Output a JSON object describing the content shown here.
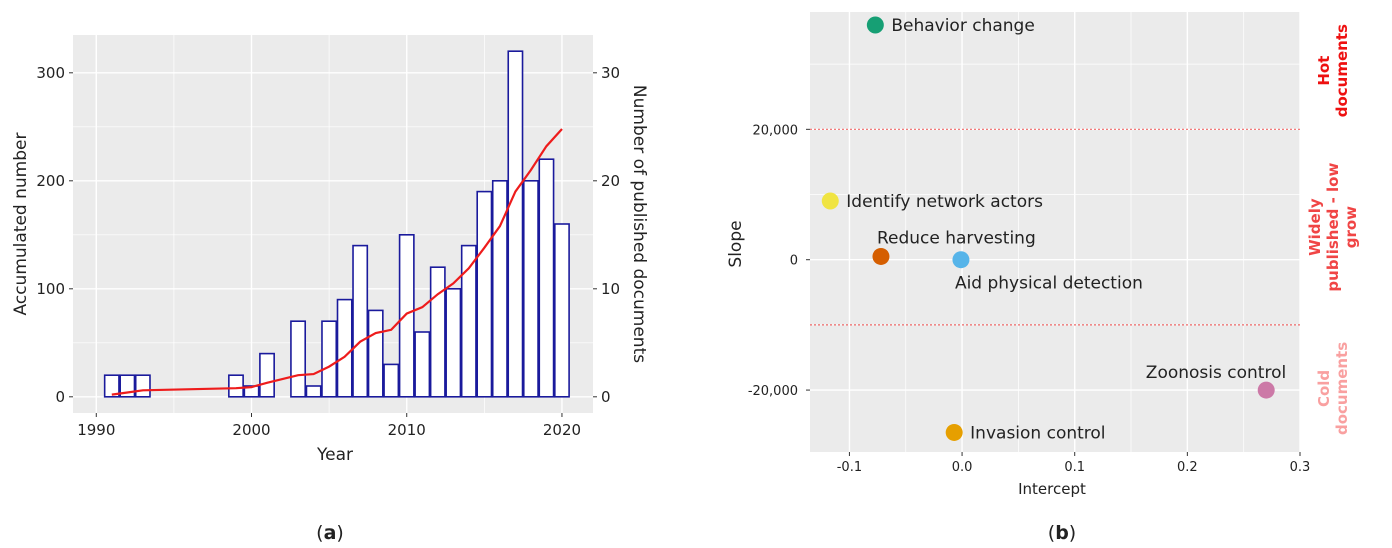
{
  "figure": {
    "panel_a_label": "(a)",
    "panel_b_label": "(b)",
    "panel_a_label_parts": [
      "(",
      "a",
      ")"
    ],
    "panel_b_label_parts": [
      "(",
      "b",
      ")"
    ]
  },
  "chart_data": [
    {
      "type": "bar",
      "panel": "a",
      "xlabel": "Year",
      "ylabel": "Accumulated number",
      "y2label": "Number of published documents",
      "xlim": [
        1988.5,
        2022
      ],
      "ylim": [
        -15,
        335
      ],
      "y2lim": [
        -1.5,
        33.5
      ],
      "xticks": [
        1990,
        2000,
        2010,
        2020
      ],
      "yticks": [
        0,
        100,
        200,
        300
      ],
      "y2ticks": [
        0,
        10,
        20,
        30
      ],
      "grid": true,
      "colors": {
        "panel": "#ebebeb",
        "grid": "#ffffff",
        "bar_edge": "#1a1a9c",
        "bar_fill": "#ffffff",
        "line": "#ee1c1c"
      },
      "series": [
        {
          "name": "",
          "kind": "bar",
          "axis": "right",
          "x": [
            1991,
            1992,
            1993,
            1999,
            2000,
            2001,
            2003,
            2004,
            2005,
            2006,
            2007,
            2008,
            2009,
            2010,
            2011,
            2012,
            2013,
            2014,
            2015,
            2016,
            2017,
            2018,
            2019,
            2020
          ],
          "values": [
            2,
            2,
            2,
            2,
            1,
            4,
            7,
            1,
            7,
            9,
            14,
            8,
            3,
            15,
            6,
            12,
            10,
            14,
            19,
            20,
            32,
            20,
            22,
            16
          ]
        },
        {
          "name": "",
          "kind": "line",
          "axis": "left",
          "x": [
            1991,
            1992,
            1993,
            1999,
            2000,
            2001,
            2003,
            2004,
            2005,
            2006,
            2007,
            2008,
            2009,
            2010,
            2011,
            2012,
            2013,
            2014,
            2015,
            2016,
            2017,
            2018,
            2019,
            2020
          ],
          "values": [
            2,
            4,
            6,
            8,
            9,
            13,
            20,
            21,
            28,
            37,
            51,
            59,
            62,
            77,
            83,
            95,
            105,
            119,
            138,
            158,
            190,
            210,
            232,
            248
          ]
        }
      ]
    },
    {
      "type": "scatter",
      "panel": "b",
      "xlabel": "Intercept",
      "ylabel": "Slope",
      "xlim": [
        -0.135,
        0.3
      ],
      "ylim": [
        -29500,
        38000
      ],
      "xticks": [
        -0.1,
        0.0,
        0.1,
        0.2,
        0.3
      ],
      "xtick_labels": [
        "-0.1",
        "0.0",
        "0.1",
        "0.2",
        "0.3"
      ],
      "yticks": [
        -20000,
        0,
        20000
      ],
      "ytick_labels": [
        "-20,000",
        "0",
        "20,000"
      ],
      "grid": true,
      "thresholds": [
        20000,
        -10000
      ],
      "colors": {
        "panel": "#ebebeb",
        "grid": "#ffffff",
        "threshold": "#f06a6a"
      },
      "points": [
        {
          "label": "Behavior change",
          "x": -0.077,
          "y": 36000,
          "color": "#169f74",
          "label_side": "right"
        },
        {
          "label": "Identify network actors",
          "x": -0.117,
          "y": 9000,
          "color": "#f0e442",
          "label_side": "right"
        },
        {
          "label": "Reduce harvesting",
          "x": -0.072,
          "y": 500,
          "color": "#d55e00",
          "label_side": "above"
        },
        {
          "label": "Aid physical detection",
          "x": -0.001,
          "y": 0,
          "color": "#56b4e9",
          "label_side": "below"
        },
        {
          "label": "Zoonosis control",
          "x": 0.27,
          "y": -20000,
          "color": "#cc79a7",
          "label_side": "above-left"
        },
        {
          "label": "Invasion control",
          "x": -0.007,
          "y": -26500,
          "color": "#e69f00",
          "label_side": "right"
        }
      ],
      "bands": [
        {
          "lines": [
            "Hot",
            "documents"
          ],
          "color": "#ee1111"
        },
        {
          "lines": [
            "Widely",
            "published - low",
            "grow"
          ],
          "color": "#f04545"
        },
        {
          "lines": [
            "Cold",
            "documents"
          ],
          "color": "#f9a0a0"
        }
      ]
    }
  ]
}
